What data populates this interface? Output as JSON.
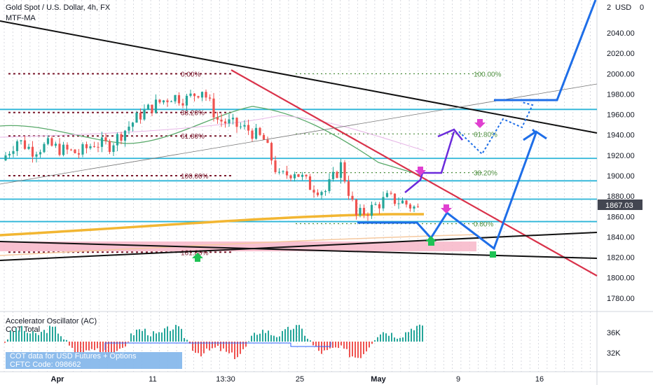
{
  "header": {
    "title": "Gold Spot / U.S. Dollar, 4h, FX",
    "indicator": "MTF-MA",
    "currency": "USD",
    "currency_prefix": "2"
  },
  "chart_data": [
    {
      "type": "line",
      "title": "Gold Spot / U.S. Dollar, 4h, FX",
      "ylim": [
        1770,
        2050
      ],
      "y_ticks": [
        1780,
        1800,
        1820,
        1840,
        1860,
        1880,
        1900,
        1920,
        1940,
        1960,
        1980,
        2000,
        2020,
        2040
      ],
      "y_tick_labels": [
        "1780.00",
        "1800.00",
        "1820.00",
        "1840.00",
        "1860.00",
        "1880.00",
        "1900.00",
        "1920.00",
        "1940.00",
        "1960.00",
        "1980.00",
        "2000.00",
        "2020.00",
        "2040.00"
      ],
      "x_tick_labels": [
        "Apr",
        "11",
        "13:30",
        "25",
        "May",
        "9",
        "16"
      ],
      "last_price": 1867.03,
      "last_price_label": "1867.03",
      "horizontal_levels": [
        1965,
        1917,
        1895,
        1877,
        1855
      ],
      "fib_left": [
        {
          "label": "0.00%",
          "price": 2000
        },
        {
          "label": "38.20%",
          "price": 1962
        },
        {
          "label": "61.80%",
          "price": 1939
        },
        {
          "label": "100.00%",
          "price": 1900
        },
        {
          "label": "161.80%",
          "price": 1825
        }
      ],
      "fib_right": [
        {
          "label": "100.00%",
          "price": 2000
        },
        {
          "label": "61.80%",
          "price": 1941
        },
        {
          "label": "38.20%",
          "price": 1903
        },
        {
          "label": "0.00%",
          "price": 1853
        }
      ],
      "series": [
        {
          "type": "candles",
          "x": [
            "Mar 29",
            "Mar 30",
            "Mar 31",
            "Apr 1",
            "Apr 4",
            "Apr 5",
            "Apr 6",
            "Apr 7",
            "Apr 8",
            "Apr 11",
            "Apr 12",
            "Apr 13",
            "Apr 14",
            "Apr 18",
            "Apr 19",
            "Apr 20",
            "Apr 21",
            "Apr 22",
            "Apr 25",
            "Apr 26",
            "Apr 27",
            "Apr 28",
            "Apr 29",
            "May 2",
            "May 3",
            "May 4",
            "May 5",
            "May 6"
          ],
          "close": [
            1915,
            1935,
            1925,
            1930,
            1925,
            1922,
            1932,
            1930,
            1945,
            1960,
            1970,
            1978,
            1975,
            1985,
            1955,
            1950,
            1945,
            1935,
            1898,
            1905,
            1890,
            1885,
            1910,
            1860,
            1868,
            1878,
            1874,
            1867
          ]
        }
      ]
    },
    {
      "type": "bar",
      "title": "Accelerator Oscillator (AC)",
      "subtitle": "COT Total",
      "y_tick_labels": [
        "36K",
        "32K"
      ],
      "colors": {
        "up": "#26a69a",
        "down": "#ef5350"
      }
    }
  ],
  "cot_box": {
    "line1": "COT data for USD Futures + Options",
    "line2": "CFTC Code: 098662"
  },
  "colors": {
    "cyan": "#2bb5d8",
    "trend_red": "#d9324a",
    "trend_black": "#111111",
    "projection_blue": "#1e6ee8",
    "projection_purple": "#6b2bdb",
    "ma_gold": "#f2b632",
    "ma_green": "#59a96a",
    "fib_dark": "#7a1a2e",
    "fib_green": "#4e8f3f",
    "arrow_pink": "#e040d0",
    "arrow_green": "#1ec254",
    "pink_zone": "#f7b6c8"
  }
}
